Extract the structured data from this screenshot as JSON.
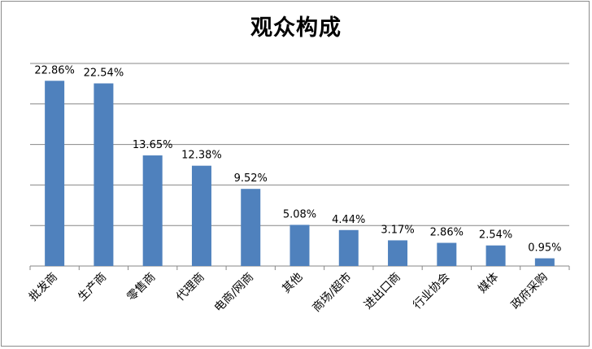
{
  "chart_data": {
    "type": "bar",
    "title": "观众构成",
    "categories": [
      "批发商",
      "生产商",
      "零售商",
      "代理商",
      "电商/网商",
      "其他",
      "商场/超市",
      "进出口商",
      "行业协会",
      "媒体",
      "政府采购"
    ],
    "values": [
      22.86,
      22.54,
      13.65,
      12.38,
      9.52,
      5.08,
      4.44,
      3.17,
      2.86,
      2.54,
      0.95
    ],
    "value_labels": [
      "22.86%",
      "22.54%",
      "13.65%",
      "12.38%",
      "9.52%",
      "5.08%",
      "4.44%",
      "3.17%",
      "2.86%",
      "2.54%",
      "0.95%"
    ],
    "ylim": [
      0,
      25
    ],
    "grid": true,
    "bar_color": "#4f81bd",
    "grid_color": "#878787"
  }
}
